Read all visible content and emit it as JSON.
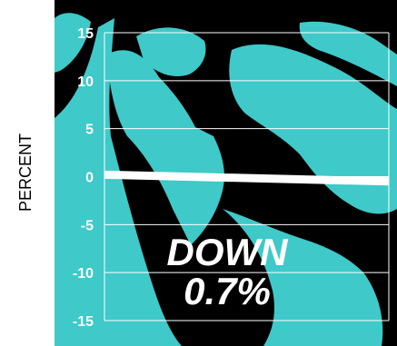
{
  "chart_data": {
    "type": "line",
    "title": "",
    "xlabel": "",
    "ylabel": "PERCENT",
    "ylim": [
      -15,
      15
    ],
    "y_ticks": [
      "15",
      "10",
      "5",
      "0",
      "-5",
      "-10",
      "-15"
    ],
    "grid": true,
    "series": [
      {
        "values": [
          0.2,
          -0.5
        ]
      }
    ],
    "annotation": {
      "line1": "DOWN",
      "line2": "0.7%"
    },
    "colors": {
      "background_dark": "#000000",
      "image_cyan": "#3fc9c9",
      "line": "#ffffff",
      "grid": "#ffffff",
      "tick_text": "#ffffff",
      "ylabel": "#000000"
    }
  }
}
